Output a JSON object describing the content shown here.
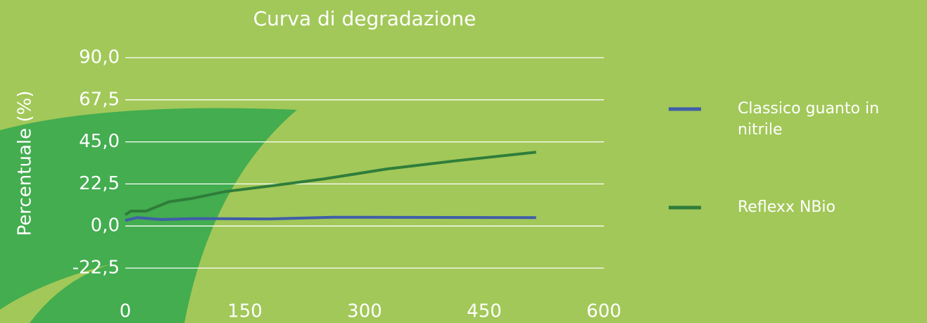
{
  "chart_data": {
    "type": "line",
    "title": "Curva di degradazione",
    "ylabel": "Percentuale (%)",
    "xlim": [
      0,
      600
    ],
    "xticks": [
      0,
      150,
      300,
      450,
      600
    ],
    "ylim": [
      -22.5,
      90
    ],
    "yticks": [
      {
        "value": -22.5,
        "label": "-22,5"
      },
      {
        "value": 0,
        "label": "0,0"
      },
      {
        "value": 22.5,
        "label": "22,5"
      },
      {
        "value": 45,
        "label": "45,0"
      },
      {
        "value": 67.5,
        "label": "67,5"
      },
      {
        "value": 90,
        "label": "90,0"
      }
    ],
    "grid": true,
    "legend": "right",
    "series": [
      {
        "name": "Classico guanto in nitrile",
        "color": "#3f5ea8",
        "x": [
          0,
          15,
          45,
          90,
          180,
          260,
          515
        ],
        "values": [
          3,
          4.5,
          3.5,
          4,
          3.8,
          4.7,
          4.5
        ]
      },
      {
        "name": "Reflexx NBio",
        "color": "#2f7d3a",
        "x": [
          0,
          7,
          26,
          55,
          83,
          125,
          196,
          249,
          328,
          417,
          515
        ],
        "values": [
          6,
          8,
          8,
          13,
          14.7,
          18.4,
          22.2,
          25.2,
          30.5,
          35,
          39.5
        ]
      }
    ]
  }
}
